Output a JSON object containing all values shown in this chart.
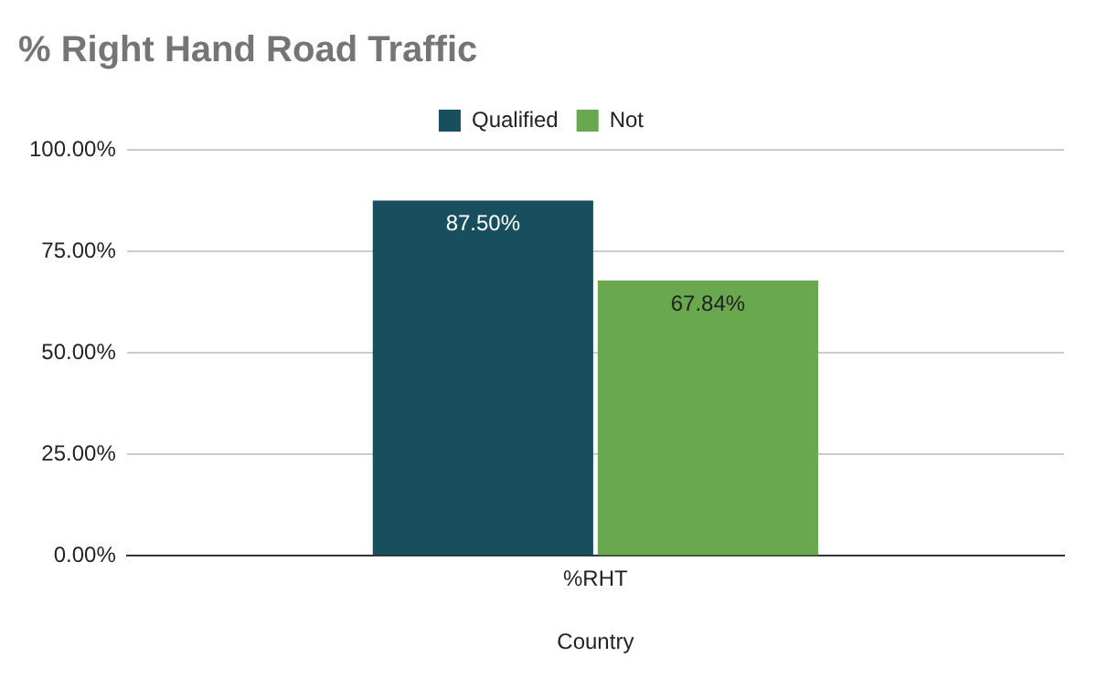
{
  "chart_data": {
    "type": "bar",
    "title": "% Right Hand Road Traffic",
    "xlabel": "Country",
    "categories": [
      "%RHT"
    ],
    "series": [
      {
        "name": "Qualified",
        "color": "#174f5f",
        "values": [
          87.5
        ],
        "value_labels": [
          "87.50%"
        ]
      },
      {
        "name": "Not",
        "color": "#6aa84f",
        "values": [
          67.84
        ],
        "value_labels": [
          "67.84%"
        ]
      }
    ],
    "ylim": [
      0,
      100
    ],
    "yticks": [
      {
        "value": 0,
        "label": "0.00%"
      },
      {
        "value": 25,
        "label": "25.00%"
      },
      {
        "value": 50,
        "label": "50.00%"
      },
      {
        "value": 75,
        "label": "75.00%"
      },
      {
        "value": 100,
        "label": "100.00%"
      }
    ],
    "grid": "y",
    "legend": "top"
  }
}
